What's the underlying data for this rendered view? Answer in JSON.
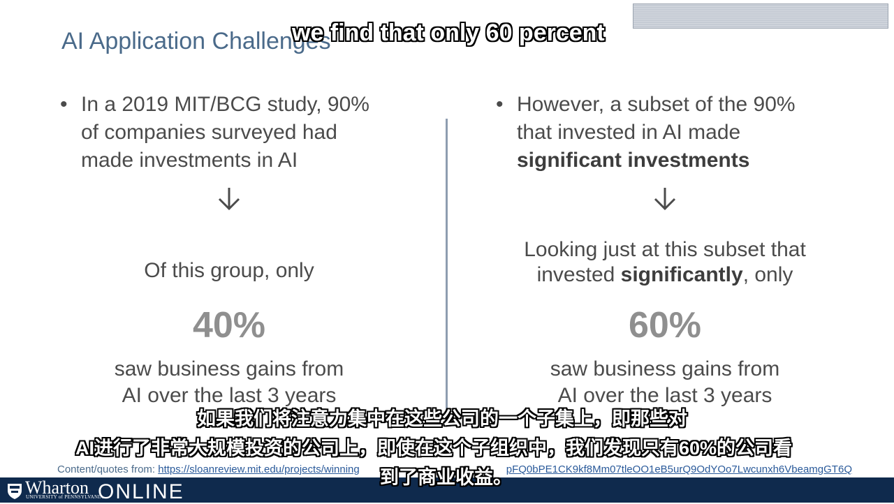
{
  "slide": {
    "title": "AI Application Challenges"
  },
  "left": {
    "bullet_symbol": "•",
    "bullet_lines": [
      "In a 2019 MIT/BCG study, 90%",
      "of companies surveyed had",
      "made investments in AI"
    ],
    "arrow_icon": "down-arrow-icon",
    "lead": "Of this group, only",
    "percent": "40%",
    "gain_lines": [
      "saw business gains from",
      "AI over the last 3 years"
    ]
  },
  "right": {
    "bullet_symbol": "•",
    "bullet_line1": "However, a subset of the 90%",
    "bullet_line2": "that invested in AI made",
    "bullet_line3_bold": "significant investments",
    "arrow_icon": "down-arrow-icon",
    "lead_line1": "Looking just at this subset that",
    "lead_line2_pre": "invested ",
    "lead_line2_bold": "significantly",
    "lead_line2_post": ", only",
    "percent": "60%",
    "gain_lines": [
      "saw business gains from",
      "AI over the last 3 years"
    ]
  },
  "footer": {
    "source_label": "Content/quotes from: ",
    "source_link_start": "https://sloanreview.mit.edu/projects/winning",
    "source_link_end": "pFQ0bPE1CK9kf8Mm07tleOO1eB5urQ9OdYOo7Lwcunxh6VbeamgGT6Q"
  },
  "brand": {
    "wharton": "Wharton",
    "university": "UNIVERSITY of PENNSYLVANIA",
    "online": "ONLINE",
    "bar_color": "#0f2a4d"
  },
  "subtitles": {
    "english": "we find that only 60 percent",
    "chinese_line1": "如果我们将注意力集中在这些公司的一个子集上，即那些对",
    "chinese_line2": "AI进行了非常大规模投资的公司上，即使在这个子组织中，我们发现只有60%的公司看",
    "chinese_line3": "到了商业收益。"
  }
}
